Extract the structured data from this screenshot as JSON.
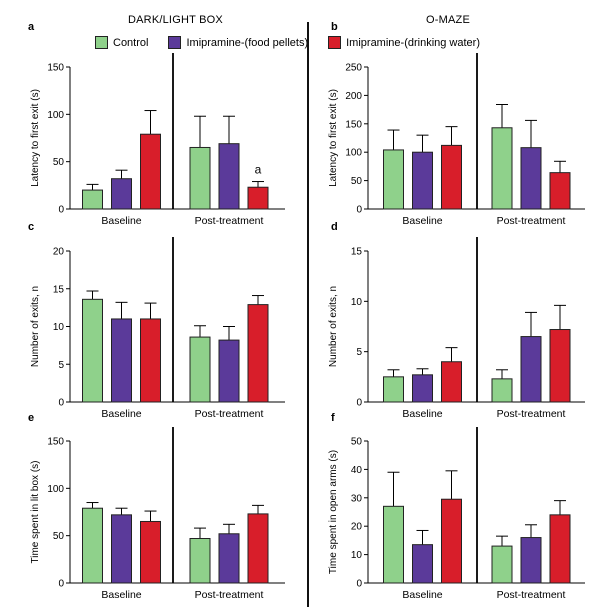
{
  "column_titles": [
    "DARK/LIGHT BOX",
    "O-MAZE"
  ],
  "legend": [
    {
      "label": "Control",
      "color": "#8fd18b"
    },
    {
      "label": "Imipramine-(food pellets)",
      "color": "#5b3a9a"
    },
    {
      "label": "Imipramine-(drinking water)",
      "color": "#d81e2a"
    }
  ],
  "chart_data": [
    {
      "panel": "a",
      "type": "bar",
      "ylabel": "Latency to first exit (s)",
      "ylim": [
        0,
        150
      ],
      "yticks": [
        0,
        50,
        100,
        150
      ],
      "groups": [
        "Baseline",
        "Post-treatment"
      ],
      "values": [
        [
          20,
          32,
          79
        ],
        [
          65,
          69,
          23
        ]
      ],
      "errors": [
        [
          6,
          9,
          25
        ],
        [
          33,
          29,
          6
        ]
      ],
      "annotations": [
        {
          "group": 1,
          "bar": 2,
          "text": "a"
        }
      ]
    },
    {
      "panel": "b",
      "type": "bar",
      "ylabel": "Latency to first exit (s)",
      "ylim": [
        0,
        250
      ],
      "yticks": [
        0,
        50,
        100,
        150,
        200,
        250
      ],
      "groups": [
        "Baseline",
        "Post-treatment"
      ],
      "values": [
        [
          104,
          100,
          112
        ],
        [
          143,
          108,
          64
        ]
      ],
      "errors": [
        [
          35,
          30,
          33
        ],
        [
          41,
          48,
          20
        ]
      ],
      "annotations": []
    },
    {
      "panel": "c",
      "type": "bar",
      "ylabel": "Number of exits, n",
      "ylim": [
        0,
        20
      ],
      "yticks": [
        0,
        5,
        10,
        15,
        20
      ],
      "groups": [
        "Baseline",
        "Post-treatment"
      ],
      "values": [
        [
          13.6,
          11,
          11
        ],
        [
          8.6,
          8.2,
          12.9
        ]
      ],
      "errors": [
        [
          1.1,
          2.2,
          2.1
        ],
        [
          1.5,
          1.8,
          1.2
        ]
      ],
      "annotations": []
    },
    {
      "panel": "d",
      "type": "bar",
      "ylabel": "Number of exits, n",
      "ylim": [
        0,
        15
      ],
      "yticks": [
        0,
        5,
        10,
        15
      ],
      "groups": [
        "Baseline",
        "Post-treatment"
      ],
      "values": [
        [
          2.5,
          2.7,
          4.0
        ],
        [
          2.3,
          6.5,
          7.2
        ]
      ],
      "errors": [
        [
          0.7,
          0.6,
          1.4
        ],
        [
          0.9,
          2.4,
          2.4
        ]
      ],
      "annotations": []
    },
    {
      "panel": "e",
      "type": "bar",
      "ylabel": "Time spent in lit box (s)",
      "ylim": [
        0,
        150
      ],
      "yticks": [
        0,
        50,
        100,
        150
      ],
      "groups": [
        "Baseline",
        "Post-treatment"
      ],
      "values": [
        [
          79,
          72,
          65
        ],
        [
          47,
          52,
          73
        ]
      ],
      "errors": [
        [
          6,
          7,
          11
        ],
        [
          11,
          10,
          9
        ]
      ],
      "annotations": []
    },
    {
      "panel": "f",
      "type": "bar",
      "ylabel": "Time spent in open arms (s)",
      "ylim": [
        0,
        50
      ],
      "yticks": [
        0,
        10,
        20,
        30,
        40,
        50
      ],
      "groups": [
        "Baseline",
        "Post-treatment"
      ],
      "values": [
        [
          27,
          13.5,
          29.5
        ],
        [
          13,
          16,
          24
        ]
      ],
      "errors": [
        [
          12,
          5,
          10
        ],
        [
          3.5,
          4.5,
          5
        ]
      ],
      "annotations": []
    }
  ]
}
